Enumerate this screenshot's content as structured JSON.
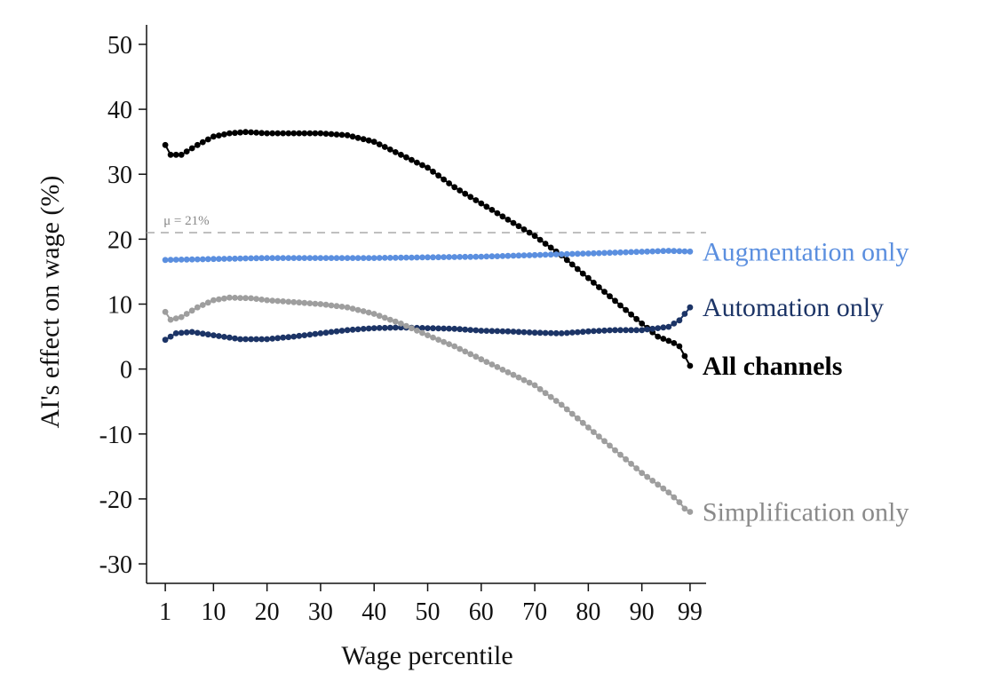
{
  "chart_data": {
    "type": "line",
    "title": "",
    "xlabel": "Wage percentile",
    "ylabel": "AI's effect on wage (%)",
    "xlim": [
      -2.5,
      102
    ],
    "ylim": [
      -33,
      53
    ],
    "x_ticks": [
      1,
      10,
      20,
      30,
      40,
      50,
      60,
      70,
      80,
      90,
      99
    ],
    "x_tick_labels": [
      "1",
      "10",
      "20",
      "30",
      "40",
      "50",
      "60",
      "70",
      "80",
      "90",
      "99"
    ],
    "y_ticks": [
      50,
      40,
      30,
      20,
      10,
      0,
      -10,
      -20,
      -30
    ],
    "y_tick_labels": [
      "50",
      "40",
      "30",
      "20",
      "10",
      "0",
      "-10",
      "-20",
      "-30"
    ],
    "grid": false,
    "reference_line": {
      "y": 21,
      "label": "μ = 21%",
      "color": "#aaaaaa"
    },
    "series": [
      {
        "name": "All channels",
        "label": "All channels",
        "color": "#000000",
        "bold": true,
        "points": [
          [
            1,
            34.5
          ],
          [
            2,
            33
          ],
          [
            4,
            33
          ],
          [
            7,
            34.5
          ],
          [
            10,
            35.8
          ],
          [
            13,
            36.3
          ],
          [
            16,
            36.5
          ],
          [
            20,
            36.3
          ],
          [
            30,
            36.3
          ],
          [
            35,
            36
          ],
          [
            40,
            35
          ],
          [
            45,
            33
          ],
          [
            50,
            31
          ],
          [
            55,
            28
          ],
          [
            60,
            25.5
          ],
          [
            65,
            23
          ],
          [
            70,
            20.5
          ],
          [
            75,
            17.5
          ],
          [
            80,
            14
          ],
          [
            85,
            10.5
          ],
          [
            90,
            7
          ],
          [
            93,
            5
          ],
          [
            96,
            4
          ],
          [
            97,
            3.5
          ],
          [
            98,
            2
          ],
          [
            99,
            0.5
          ]
        ]
      },
      {
        "name": "Augmentation only",
        "label": "Augmentation only",
        "color": "#5b8fdf",
        "bold": false,
        "points": [
          [
            1,
            16.8
          ],
          [
            20,
            17.1
          ],
          [
            40,
            17.1
          ],
          [
            60,
            17.3
          ],
          [
            80,
            17.8
          ],
          [
            95,
            18.2
          ],
          [
            99,
            18.1
          ]
        ]
      },
      {
        "name": "Automation only",
        "label": "Automation only",
        "color": "#1c3466",
        "bold": false,
        "points": [
          [
            1,
            4.5
          ],
          [
            3,
            5.5
          ],
          [
            6,
            5.7
          ],
          [
            10,
            5.2
          ],
          [
            15,
            4.6
          ],
          [
            20,
            4.6
          ],
          [
            25,
            5
          ],
          [
            30,
            5.5
          ],
          [
            35,
            6
          ],
          [
            40,
            6.3
          ],
          [
            45,
            6.4
          ],
          [
            50,
            6.3
          ],
          [
            55,
            6.2
          ],
          [
            60,
            5.9
          ],
          [
            65,
            5.8
          ],
          [
            70,
            5.6
          ],
          [
            75,
            5.5
          ],
          [
            80,
            5.8
          ],
          [
            85,
            6
          ],
          [
            90,
            6
          ],
          [
            95,
            6.5
          ],
          [
            97,
            7.5
          ],
          [
            98,
            8.5
          ],
          [
            99,
            9.5
          ]
        ]
      },
      {
        "name": "Simplification only",
        "label": "Simplification only",
        "color": "#9e9e9e",
        "label_color": "#8a8a8a",
        "bold": false,
        "points": [
          [
            1,
            8.8
          ],
          [
            2,
            7.6
          ],
          [
            4,
            8
          ],
          [
            7,
            9.5
          ],
          [
            10,
            10.6
          ],
          [
            13,
            11
          ],
          [
            17,
            10.9
          ],
          [
            20,
            10.6
          ],
          [
            25,
            10.3
          ],
          [
            30,
            10
          ],
          [
            35,
            9.5
          ],
          [
            40,
            8.5
          ],
          [
            45,
            7
          ],
          [
            50,
            5.2
          ],
          [
            55,
            3.5
          ],
          [
            60,
            1.5
          ],
          [
            65,
            -0.5
          ],
          [
            70,
            -2.5
          ],
          [
            75,
            -5.5
          ],
          [
            80,
            -9
          ],
          [
            85,
            -12.5
          ],
          [
            90,
            -16
          ],
          [
            95,
            -19
          ],
          [
            97,
            -20.5
          ],
          [
            98,
            -21.5
          ],
          [
            99,
            -22
          ]
        ]
      }
    ]
  }
}
